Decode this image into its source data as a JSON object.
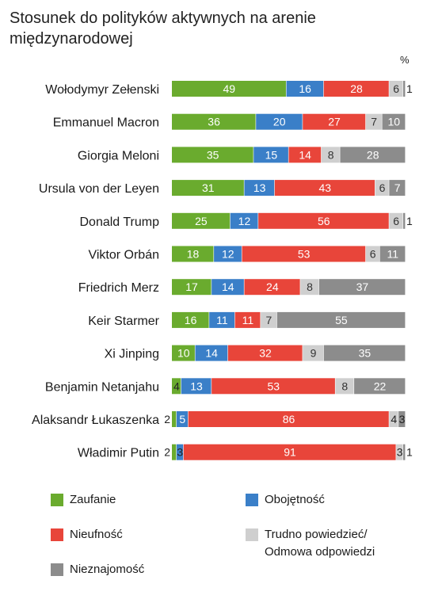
{
  "header": {
    "title": "Stosunek do polityków aktywnych na arenie międzynarodowej",
    "unit": "%"
  },
  "colors": {
    "Zaufanie": "#6aab2e",
    "Obojętność": "#3a7fc8",
    "Nieufność": "#e8453a",
    "Trudno powiedzieć/ Odmowa odpowiedzi": "#cfcfcf",
    "Nieznajomość": "#8c8c8c"
  },
  "legend": {
    "items": [
      {
        "name": "Zaufanie",
        "color": "#6aab2e"
      },
      {
        "name": "Obojętność",
        "color": "#3a7fc8"
      },
      {
        "name": "Nieufność",
        "color": "#e8453a"
      },
      {
        "name": "Trudno powiedzieć/ Odmowa odpowiedzi",
        "line1": "Trudno powiedzieć/",
        "line2": "Odmowa odpowiedzi",
        "color": "#cfcfcf"
      },
      {
        "name": "Nieznajomość",
        "color": "#8c8c8c"
      }
    ]
  },
  "chart_data": {
    "type": "bar",
    "stacked": true,
    "orientation": "horizontal",
    "title": "Stosunek do polityków aktywnych na arenie międzynarodowej",
    "unit": "%",
    "categories": [
      "Wołodymyr Zełenski",
      "Emmanuel Macron",
      "Giorgia Meloni",
      "Ursula von der Leyen",
      "Donald Trump",
      "Viktor Orbán",
      "Friedrich Merz",
      "Keir Starmer",
      "Xi Jinping",
      "Benjamin Netanjahu",
      "Alaksandr Łukaszenka",
      "Władimir Putin"
    ],
    "series": [
      {
        "name": "Zaufanie",
        "values": [
          49,
          36,
          35,
          31,
          25,
          18,
          17,
          16,
          10,
          4,
          2,
          2
        ]
      },
      {
        "name": "Obojętność",
        "values": [
          16,
          20,
          15,
          13,
          12,
          12,
          14,
          11,
          14,
          13,
          5,
          3
        ]
      },
      {
        "name": "Nieufność",
        "values": [
          28,
          27,
          14,
          43,
          56,
          53,
          24,
          11,
          32,
          53,
          86,
          91
        ]
      },
      {
        "name": "Trudno powiedzieć/ Odmowa odpowiedzi",
        "values": [
          6,
          7,
          8,
          6,
          6,
          6,
          8,
          7,
          9,
          8,
          4,
          3
        ]
      },
      {
        "name": "Nieznajomość",
        "values": [
          1,
          10,
          28,
          7,
          1,
          11,
          37,
          55,
          35,
          22,
          3,
          1
        ]
      }
    ],
    "xlim": [
      0,
      100
    ],
    "grid": false,
    "legend_position": "bottom"
  }
}
